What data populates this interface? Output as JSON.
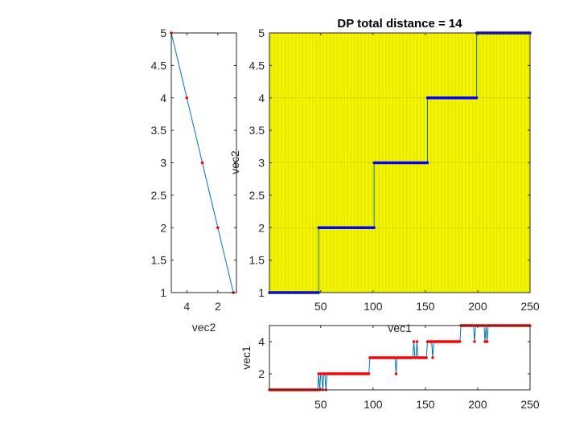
{
  "figure": {
    "background": "#ffffff"
  },
  "chart_data": [
    {
      "type": "line",
      "panel": "left",
      "title": "",
      "xlabel": "vec2",
      "ylabel": "",
      "xlim": [
        5,
        0.8
      ],
      "ylim": [
        1,
        5
      ],
      "xticks": [
        4,
        2
      ],
      "yticks": [
        1,
        1.5,
        2,
        2.5,
        3,
        3.5,
        4,
        4.5,
        5
      ],
      "series": [
        {
          "x": [
            5,
            4,
            3,
            2,
            1
          ],
          "y": [
            5,
            4,
            3,
            2,
            1
          ],
          "line_color": "#0072bd",
          "marker_color": "#ff0000"
        }
      ],
      "grid": false
    },
    {
      "type": "line",
      "panel": "main",
      "title": "DP total distance = 14",
      "xlabel": "vec1",
      "ylabel": "vec2",
      "xlim": [
        1,
        250
      ],
      "ylim": [
        1,
        5
      ],
      "xticks": [
        50,
        100,
        150,
        200,
        250
      ],
      "yticks": [
        1,
        1.5,
        2,
        2.5,
        3,
        3.5,
        4,
        4.5,
        5
      ],
      "background": "#ffff00",
      "grid_color": "#b4b400",
      "grid": true,
      "path_steps": [
        {
          "x_start": 1,
          "x_end": 48,
          "y": 1
        },
        {
          "x_start": 48,
          "x_end": 101,
          "y": 2
        },
        {
          "x_start": 101,
          "x_end": 152,
          "y": 3
        },
        {
          "x_start": 152,
          "x_end": 199,
          "y": 4
        },
        {
          "x_start": 199,
          "x_end": 250,
          "y": 5
        }
      ],
      "path_color": "#0000ff",
      "step_line_color": "#0072bd"
    },
    {
      "type": "line",
      "panel": "bottom",
      "title": "",
      "xlabel": "",
      "ylabel": "vec1",
      "xlim": [
        1,
        250
      ],
      "ylim": [
        1,
        5
      ],
      "xticks": [
        50,
        100,
        150,
        200,
        250
      ],
      "yticks": [
        2,
        4
      ],
      "line_color": "#0072bd",
      "marker_color": "#ff0000",
      "grid": false,
      "segments": [
        {
          "x_start": 1,
          "x_end": 47,
          "y": 1
        },
        {
          "x_start": 48,
          "x_end": 96,
          "y": 2
        },
        {
          "x_start": 97,
          "x_end": 134,
          "y": 3
        },
        {
          "x_start": 135,
          "x_end": 151,
          "y": 3
        },
        {
          "x_start": 152,
          "x_end": 183,
          "y": 4
        },
        {
          "x_start": 184,
          "x_end": 250,
          "y": 5
        }
      ],
      "spikes": [
        {
          "x": 49,
          "y": 1
        },
        {
          "x": 52,
          "y": 1
        },
        {
          "x": 55,
          "y": 1
        },
        {
          "x": 97,
          "y": 3
        },
        {
          "x": 100,
          "y": 3
        },
        {
          "x": 122,
          "y": 2
        },
        {
          "x": 139,
          "y": 4
        },
        {
          "x": 142,
          "y": 4
        },
        {
          "x": 157,
          "y": 3
        },
        {
          "x": 185,
          "y": 5
        },
        {
          "x": 192,
          "y": 5
        },
        {
          "x": 197,
          "y": 4
        },
        {
          "x": 200,
          "y": 5
        },
        {
          "x": 204,
          "y": 5
        },
        {
          "x": 207,
          "y": 4
        },
        {
          "x": 209,
          "y": 4
        }
      ]
    }
  ]
}
